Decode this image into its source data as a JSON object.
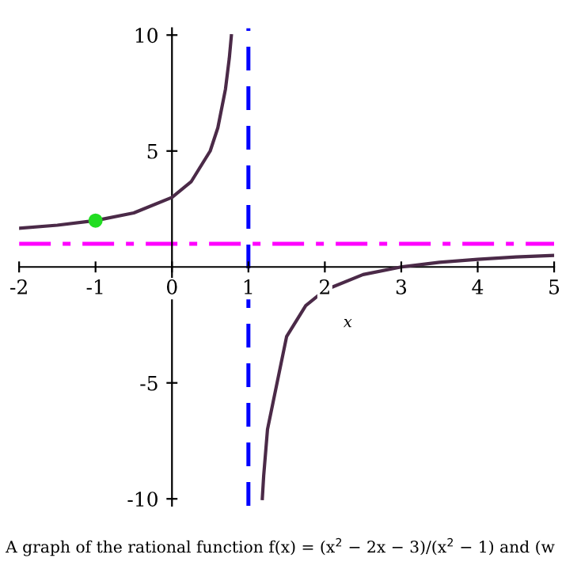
{
  "chart_data": {
    "type": "line",
    "xlabel": "x",
    "annotations": [
      "A graph of the rational function f(x) = (x$^{2}$ − 2x − 3)/(x$^{2}$ − 1) and (w"
    ],
    "series": [
      {
        "color": "#4b2a48",
        "x": [
          -2,
          -1.5,
          -1,
          -0.5,
          0,
          0.25,
          0.5,
          0.6,
          0.7,
          0.75,
          0.777
        ],
        "values": [
          1.67,
          1.8,
          2,
          2.33,
          3,
          3.67,
          5,
          6,
          7.67,
          9,
          9.97
        ]
      },
      {
        "color": "#4b2a48",
        "x": [
          1.182,
          1.2,
          1.25,
          1.5,
          1.75,
          2,
          2.5,
          3,
          3.5,
          4,
          4.5,
          5
        ],
        "values": [
          -9.99,
          -9,
          -7,
          -3,
          -1.67,
          -1,
          -0.33,
          0,
          0.2,
          0.33,
          0.43,
          0.5
        ]
      },
      {
        "type": "scatter",
        "color": "#22dd22",
        "x": [
          -1
        ],
        "values": [
          2
        ],
        "marker": "circle"
      }
    ],
    "ref_lines": [
      {
        "axis": "x",
        "value": 1,
        "color": "#0000ff",
        "line_style": "dashed"
      },
      {
        "axis": "y",
        "value": 1,
        "color": "#ff00ff",
        "line_style": "dashdot"
      }
    ],
    "xlim": [
      -2,
      5
    ],
    "ylim": [
      -10.3,
      10.3
    ],
    "xticks": [
      -2,
      -1,
      0,
      1,
      2,
      3,
      4,
      5
    ],
    "yticks": [
      -10,
      -5,
      5,
      10
    ],
    "grid": false,
    "legend": false
  }
}
